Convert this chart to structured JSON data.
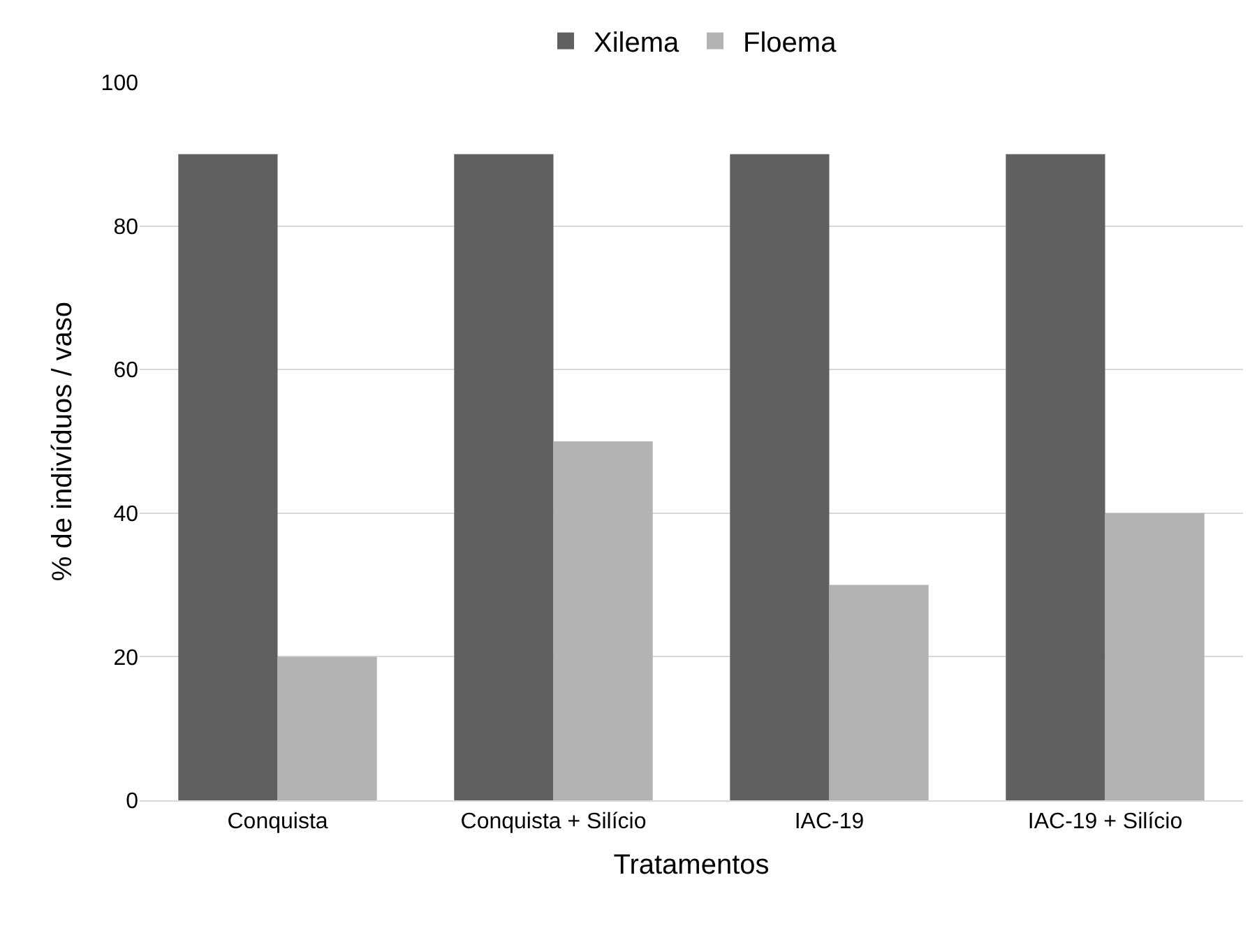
{
  "chart_data": {
    "type": "bar",
    "categories": [
      "Conquista",
      "Conquista + Silício",
      "IAC-19",
      "IAC-19 + Silício"
    ],
    "series": [
      {
        "name": "Xilema",
        "color": "#606060",
        "values": [
          90,
          90,
          90,
          90
        ]
      },
      {
        "name": "Floema",
        "color": "#b3b3b3",
        "values": [
          20,
          50,
          30,
          40
        ]
      }
    ],
    "xlabel": "Tratamentos",
    "ylabel": "% de indivíduos / vaso",
    "ylim": [
      0,
      100
    ],
    "yticks": [
      0,
      20,
      40,
      60,
      80,
      100
    ],
    "grid": "y",
    "legend": "top"
  }
}
